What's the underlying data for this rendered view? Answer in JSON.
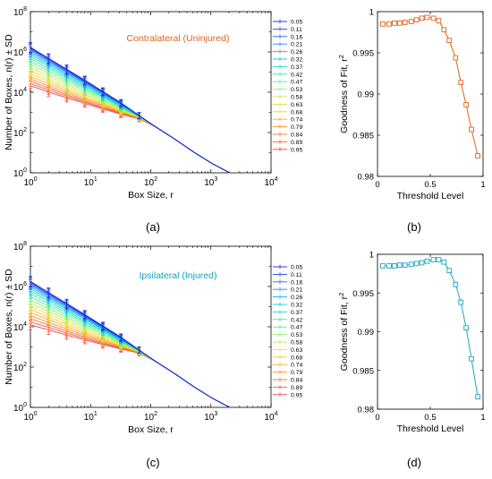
{
  "panels": [
    {
      "id": "a",
      "label": "(a)"
    },
    {
      "id": "b",
      "label": "(b)"
    },
    {
      "id": "c",
      "label": "(c)"
    },
    {
      "id": "d",
      "label": "(d)"
    }
  ],
  "chart_data": [
    {
      "panel": "a",
      "type": "line",
      "title": "Contralateral (Uninjured)",
      "title_color": "#e0621a",
      "xlabel": "Box Size, r",
      "ylabel": "Number of Boxes, n(r) ± SD",
      "xscale": "log",
      "yscale": "log",
      "xlim": [
        1,
        10000
      ],
      "ylim": [
        1,
        100000000
      ],
      "x_ticks": [
        "10^0",
        "10^1",
        "10^2",
        "10^3",
        "10^4"
      ],
      "y_ticks": [
        "10^0",
        "10^2",
        "10^4",
        "10^6",
        "10^8"
      ],
      "grid": false,
      "legend_position": "right",
      "error_bars": true,
      "x": [
        1,
        2,
        4,
        8,
        16,
        32,
        64,
        128,
        256,
        512,
        1024,
        2048
      ],
      "series": [
        {
          "name": "0.05",
          "color": "#1f1fd6",
          "values": [
            1700000,
            480000,
            140000,
            40000,
            11000,
            3000,
            700,
            170,
            45,
            11,
            3,
            1
          ]
        },
        {
          "name": "0.11",
          "color": "#1f3fe6",
          "values": [
            1550000,
            440000,
            128000,
            37000,
            10300,
            2850,
            690,
            170,
            45,
            11,
            3,
            1
          ]
        },
        {
          "name": "0.16",
          "color": "#2164f0",
          "values": [
            1350000,
            390000,
            115000,
            33500,
            9600,
            2700,
            680,
            170,
            45,
            11,
            3,
            1
          ]
        },
        {
          "name": "0.21",
          "color": "#1f86f2",
          "values": [
            1150000,
            340000,
            102000,
            30500,
            8900,
            2550,
            670,
            170,
            45,
            11,
            3,
            1
          ]
        },
        {
          "name": "0.26",
          "color": "#12a7ef",
          "values": [
            950000,
            290000,
            89000,
            27000,
            8100,
            2400,
            660,
            170,
            45,
            11,
            3,
            1
          ]
        },
        {
          "name": "0.32",
          "color": "#0cc3e6",
          "values": [
            760000,
            240000,
            75000,
            23500,
            7300,
            2250,
            650,
            170,
            45,
            11,
            3,
            1
          ]
        },
        {
          "name": "0.37",
          "color": "#11d6cf",
          "values": [
            590000,
            192000,
            62000,
            20000,
            6400,
            2050,
            640,
            170,
            45,
            11,
            3,
            1
          ]
        },
        {
          "name": "0.42",
          "color": "#2fe3b4",
          "values": [
            450000,
            152000,
            51000,
            17000,
            5700,
            1900,
            630,
            170,
            45,
            11,
            3,
            1
          ]
        },
        {
          "name": "0.47",
          "color": "#5ceb8f",
          "values": [
            330000,
            116000,
            40500,
            14000,
            4900,
            1700,
            615,
            170,
            45,
            11,
            3,
            1
          ]
        },
        {
          "name": "0.53",
          "color": "#8ff06a",
          "values": [
            240000,
            87000,
            31500,
            11500,
            4200,
            1550,
            600,
            170,
            45,
            11,
            3,
            1
          ]
        },
        {
          "name": "0.58",
          "color": "#bdee49",
          "values": [
            170000,
            64000,
            24500,
            9400,
            3600,
            1400,
            585,
            170,
            45,
            11,
            3,
            1
          ]
        },
        {
          "name": "0.63",
          "color": "#e3e330",
          "values": [
            120000,
            47000,
            19000,
            7700,
            3100,
            1280,
            570,
            170,
            45,
            11,
            3,
            1
          ]
        },
        {
          "name": "0.68",
          "color": "#f7cb25",
          "values": [
            86000,
            35000,
            14800,
            6300,
            2700,
            1150,
            555,
            170,
            45,
            11,
            3,
            1
          ]
        },
        {
          "name": "0.74",
          "color": "#fbab24",
          "values": [
            62000,
            26500,
            11700,
            5200,
            2350,
            1050,
            540,
            170,
            45,
            11,
            3,
            1
          ]
        },
        {
          "name": "0.79",
          "color": "#fb8b2a",
          "values": [
            46000,
            20500,
            9400,
            4400,
            2100,
            980,
            525,
            170,
            45,
            11,
            3,
            1
          ]
        },
        {
          "name": "0.84",
          "color": "#f86f35",
          "values": [
            35000,
            16200,
            7700,
            3750,
            1850,
            920,
            510,
            170,
            45,
            11,
            3,
            1
          ]
        },
        {
          "name": "0.89",
          "color": "#f2553f",
          "values": [
            27000,
            12900,
            6400,
            3250,
            1650,
            860,
            495,
            170,
            45,
            11,
            3,
            1
          ]
        },
        {
          "name": "0.95",
          "color": "#ea3f4a",
          "values": [
            21000,
            10300,
            5300,
            2800,
            1480,
            810,
            480,
            170,
            45,
            11,
            3,
            1
          ]
        }
      ]
    },
    {
      "panel": "b",
      "type": "line",
      "title": "",
      "xlabel": "Threshold Level",
      "ylabel": "Goodness of Fit, r^2",
      "xlim": [
        0,
        1
      ],
      "ylim": [
        0.98,
        1
      ],
      "x_ticks": [
        "0",
        "0.5",
        "1"
      ],
      "y_ticks": [
        "0.98",
        "0.985",
        "0.99",
        "0.995",
        "1"
      ],
      "grid": false,
      "marker": "square",
      "color": "#e0621a",
      "x": [
        0.05,
        0.11,
        0.16,
        0.21,
        0.26,
        0.32,
        0.37,
        0.42,
        0.47,
        0.53,
        0.58,
        0.63,
        0.68,
        0.74,
        0.79,
        0.84,
        0.89,
        0.95
      ],
      "values": [
        0.9985,
        0.9985,
        0.9986,
        0.9986,
        0.9987,
        0.9988,
        0.999,
        0.9992,
        0.9993,
        0.9992,
        0.9989,
        0.9978,
        0.9965,
        0.9944,
        0.9914,
        0.9887,
        0.9857,
        0.9825
      ]
    },
    {
      "panel": "c",
      "type": "line",
      "title": "Ipsilateral (Injured)",
      "title_color": "#0aa3c2",
      "xlabel": "Box Size, r",
      "ylabel": "Number of Boxes, n(r) ± SD",
      "xscale": "log",
      "yscale": "log",
      "xlim": [
        1,
        10000
      ],
      "ylim": [
        1,
        100000000
      ],
      "x_ticks": [
        "10^0",
        "10^1",
        "10^2",
        "10^3",
        "10^4"
      ],
      "y_ticks": [
        "10^0",
        "10^2",
        "10^4",
        "10^6",
        "10^8"
      ],
      "grid": false,
      "legend_position": "right",
      "error_bars": true,
      "x": [
        1,
        2,
        4,
        8,
        16,
        32,
        64,
        128,
        256,
        512,
        1024,
        2048
      ],
      "series": [
        {
          "name": "0.05",
          "color": "#1f1fd6",
          "values": [
            1800000,
            500000,
            145000,
            41000,
            11200,
            3050,
            710,
            170,
            45,
            11,
            3,
            1
          ]
        },
        {
          "name": "0.11",
          "color": "#1f3fe6",
          "values": [
            1600000,
            450000,
            131000,
            37500,
            10400,
            2880,
            700,
            170,
            45,
            11,
            3,
            1
          ]
        },
        {
          "name": "0.16",
          "color": "#2164f0",
          "values": [
            1400000,
            400000,
            118000,
            34000,
            9700,
            2720,
            690,
            170,
            45,
            11,
            3,
            1
          ]
        },
        {
          "name": "0.21",
          "color": "#1f86f2",
          "values": [
            1200000,
            350000,
            104000,
            31000,
            9000,
            2580,
            680,
            170,
            45,
            11,
            3,
            1
          ]
        },
        {
          "name": "0.26",
          "color": "#12a7ef",
          "values": [
            980000,
            295000,
            90000,
            27500,
            8200,
            2430,
            670,
            170,
            45,
            11,
            3,
            1
          ]
        },
        {
          "name": "0.32",
          "color": "#0cc3e6",
          "values": [
            770000,
            243000,
            76000,
            23800,
            7400,
            2280,
            660,
            170,
            45,
            11,
            3,
            1
          ]
        },
        {
          "name": "0.37",
          "color": "#11d6cf",
          "values": [
            580000,
            192000,
            62000,
            20000,
            6500,
            2100,
            650,
            170,
            45,
            11,
            3,
            1
          ]
        },
        {
          "name": "0.42",
          "color": "#2fe3b4",
          "values": [
            430000,
            148000,
            50000,
            16800,
            5700,
            1920,
            640,
            170,
            45,
            11,
            3,
            1
          ]
        },
        {
          "name": "0.47",
          "color": "#5ceb8f",
          "values": [
            310000,
            110000,
            39000,
            13700,
            4900,
            1740,
            625,
            170,
            45,
            11,
            3,
            1
          ]
        },
        {
          "name": "0.53",
          "color": "#8ff06a",
          "values": [
            215000,
            80000,
            29500,
            11000,
            4150,
            1570,
            610,
            170,
            45,
            11,
            3,
            1
          ]
        },
        {
          "name": "0.58",
          "color": "#bdee49",
          "values": [
            150000,
            58000,
            22500,
            8800,
            3500,
            1420,
            595,
            170,
            45,
            11,
            3,
            1
          ]
        },
        {
          "name": "0.63",
          "color": "#e3e330",
          "values": [
            105000,
            42000,
            17000,
            7100,
            3000,
            1290,
            580,
            170,
            45,
            11,
            3,
            1
          ]
        },
        {
          "name": "0.68",
          "color": "#f7cb25",
          "values": [
            73000,
            30500,
            13000,
            5700,
            2550,
            1160,
            565,
            170,
            45,
            11,
            3,
            1
          ]
        },
        {
          "name": "0.74",
          "color": "#fbab24",
          "values": [
            51000,
            22500,
            10000,
            4600,
            2200,
            1060,
            550,
            170,
            45,
            11,
            3,
            1
          ]
        },
        {
          "name": "0.79",
          "color": "#fb8b2a",
          "values": [
            36000,
            16500,
            7800,
            3800,
            1900,
            980,
            535,
            170,
            45,
            11,
            3,
            1
          ]
        },
        {
          "name": "0.84",
          "color": "#f86f35",
          "values": [
            25000,
            12300,
            6100,
            3150,
            1660,
            910,
            520,
            170,
            45,
            11,
            3,
            1
          ]
        },
        {
          "name": "0.89",
          "color": "#f2553f",
          "values": [
            17500,
            9300,
            4900,
            2650,
            1470,
            850,
            505,
            170,
            45,
            11,
            3,
            1
          ]
        },
        {
          "name": "0.95",
          "color": "#ea3f4a",
          "values": [
            12500,
            7000,
            3900,
            2250,
            1310,
            800,
            490,
            170,
            45,
            11,
            3,
            1
          ]
        }
      ]
    },
    {
      "panel": "d",
      "type": "line",
      "title": "",
      "xlabel": "Threshold Level",
      "ylabel": "Goodness of Fit, r^2",
      "xlim": [
        0,
        1
      ],
      "ylim": [
        0.98,
        1
      ],
      "x_ticks": [
        "0",
        "0.5",
        "1"
      ],
      "y_ticks": [
        "0.98",
        "0.985",
        "0.99",
        "0.995",
        "1"
      ],
      "grid": false,
      "marker": "square",
      "color": "#1aa5c6",
      "x": [
        0.05,
        0.11,
        0.16,
        0.21,
        0.26,
        0.32,
        0.37,
        0.42,
        0.47,
        0.53,
        0.58,
        0.63,
        0.68,
        0.74,
        0.79,
        0.84,
        0.89,
        0.95
      ],
      "values": [
        0.9985,
        0.9985,
        0.9985,
        0.9986,
        0.9986,
        0.9987,
        0.9988,
        0.9989,
        0.9991,
        0.9993,
        0.9993,
        0.999,
        0.9979,
        0.9961,
        0.9938,
        0.9905,
        0.9865,
        0.9816
      ]
    }
  ]
}
